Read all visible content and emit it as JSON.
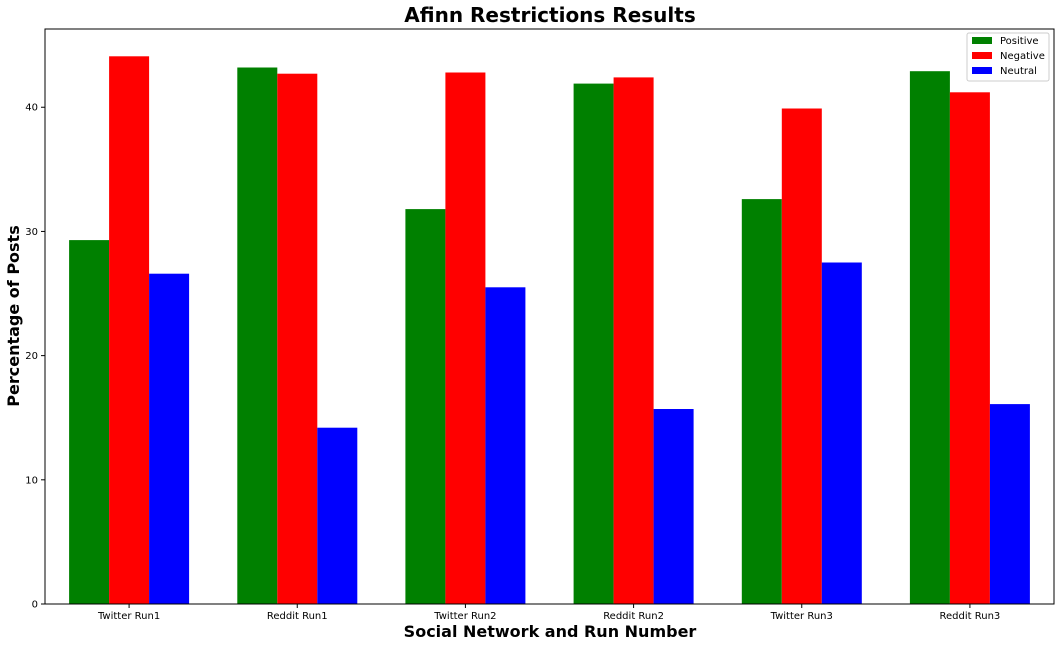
{
  "chart_data": {
    "type": "bar",
    "title": "Afinn Restrictions Results",
    "xlabel": "Social Network and Run Number",
    "ylabel": "Percentage of Posts",
    "categories": [
      "Twitter Run1",
      "Reddit Run1",
      "Twitter Run2",
      "Reddit Run2",
      "Twitter Run3",
      "Reddit Run3"
    ],
    "series": [
      {
        "name": "Positive",
        "color": "#008000",
        "values": [
          29.3,
          43.2,
          31.8,
          41.9,
          32.6,
          42.9
        ]
      },
      {
        "name": "Negative",
        "color": "#ff0000",
        "values": [
          44.1,
          42.7,
          42.8,
          42.4,
          39.9,
          41.2
        ]
      },
      {
        "name": "Neutral",
        "color": "#0000ff",
        "values": [
          26.6,
          14.2,
          25.5,
          15.7,
          27.5,
          16.1
        ]
      }
    ],
    "ylim": [
      0,
      46.3
    ],
    "yticks": [
      "0",
      "10",
      "20",
      "30",
      "40"
    ],
    "ytick_values": [
      0,
      10,
      20,
      30,
      40
    ],
    "legend_location": "top-right",
    "grid": false
  }
}
